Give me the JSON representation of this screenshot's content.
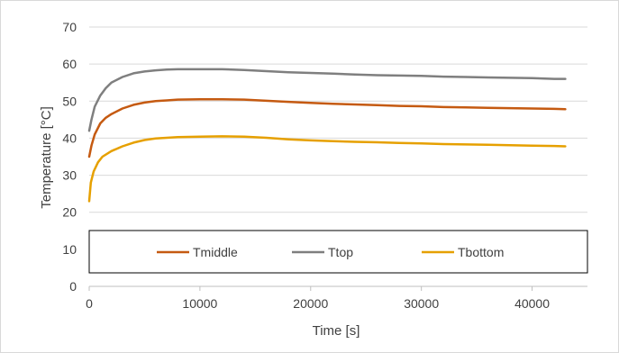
{
  "chart_data": {
    "type": "line",
    "title": "",
    "xlabel": "Time [s]",
    "ylabel": "Temperature [°C]",
    "xlim": [
      0,
      45000
    ],
    "ylim": [
      0,
      70
    ],
    "xticks": [
      0,
      10000,
      20000,
      30000,
      40000
    ],
    "yticks": [
      0,
      10,
      20,
      30,
      40,
      50,
      60,
      70
    ],
    "grid": "horizontal",
    "legend": "bottom, inside plot area",
    "series": [
      {
        "name": "Tmiddle",
        "color": "#c55a11",
        "points": [
          [
            0,
            35
          ],
          [
            200,
            38
          ],
          [
            500,
            41
          ],
          [
            1000,
            44
          ],
          [
            1500,
            45.5
          ],
          [
            2000,
            46.5
          ],
          [
            3000,
            48
          ],
          [
            4000,
            49
          ],
          [
            5000,
            49.6
          ],
          [
            6000,
            50
          ],
          [
            7000,
            50.2
          ],
          [
            8000,
            50.4
          ],
          [
            10000,
            50.5
          ],
          [
            12000,
            50.5
          ],
          [
            14000,
            50.4
          ],
          [
            16000,
            50.1
          ],
          [
            18000,
            49.8
          ],
          [
            20000,
            49.5
          ],
          [
            22000,
            49.3
          ],
          [
            24000,
            49.1
          ],
          [
            26000,
            48.9
          ],
          [
            28000,
            48.7
          ],
          [
            30000,
            48.6
          ],
          [
            32000,
            48.4
          ],
          [
            34000,
            48.3
          ],
          [
            36000,
            48.2
          ],
          [
            38000,
            48.1
          ],
          [
            40000,
            48
          ],
          [
            42000,
            47.9
          ],
          [
            43000,
            47.8
          ]
        ]
      },
      {
        "name": "Ttop",
        "color": "#7f7f7f",
        "points": [
          [
            0,
            42
          ],
          [
            200,
            45
          ],
          [
            500,
            48.5
          ],
          [
            1000,
            51.5
          ],
          [
            1500,
            53.5
          ],
          [
            2000,
            55
          ],
          [
            3000,
            56.5
          ],
          [
            4000,
            57.5
          ],
          [
            5000,
            58
          ],
          [
            6000,
            58.3
          ],
          [
            7000,
            58.5
          ],
          [
            8000,
            58.6
          ],
          [
            10000,
            58.6
          ],
          [
            12000,
            58.6
          ],
          [
            14000,
            58.4
          ],
          [
            16000,
            58.1
          ],
          [
            18000,
            57.8
          ],
          [
            20000,
            57.6
          ],
          [
            22000,
            57.4
          ],
          [
            24000,
            57.2
          ],
          [
            26000,
            57
          ],
          [
            28000,
            56.9
          ],
          [
            30000,
            56.8
          ],
          [
            32000,
            56.6
          ],
          [
            34000,
            56.5
          ],
          [
            36000,
            56.4
          ],
          [
            38000,
            56.3
          ],
          [
            40000,
            56.2
          ],
          [
            42000,
            56
          ],
          [
            43000,
            56
          ]
        ]
      },
      {
        "name": "Tbottom",
        "color": "#e6a000",
        "points": [
          [
            0,
            23
          ],
          [
            150,
            28
          ],
          [
            400,
            31
          ],
          [
            800,
            33.5
          ],
          [
            1200,
            35
          ],
          [
            2000,
            36.5
          ],
          [
            3000,
            37.8
          ],
          [
            4000,
            38.8
          ],
          [
            5000,
            39.5
          ],
          [
            6000,
            39.9
          ],
          [
            7000,
            40.1
          ],
          [
            8000,
            40.3
          ],
          [
            10000,
            40.4
          ],
          [
            12000,
            40.5
          ],
          [
            14000,
            40.4
          ],
          [
            16000,
            40.1
          ],
          [
            18000,
            39.7
          ],
          [
            20000,
            39.4
          ],
          [
            22000,
            39.2
          ],
          [
            24000,
            39
          ],
          [
            26000,
            38.9
          ],
          [
            28000,
            38.7
          ],
          [
            30000,
            38.6
          ],
          [
            32000,
            38.4
          ],
          [
            34000,
            38.3
          ],
          [
            36000,
            38.2
          ],
          [
            38000,
            38.1
          ],
          [
            40000,
            38
          ],
          [
            42000,
            37.9
          ],
          [
            43000,
            37.8
          ]
        ]
      }
    ]
  }
}
